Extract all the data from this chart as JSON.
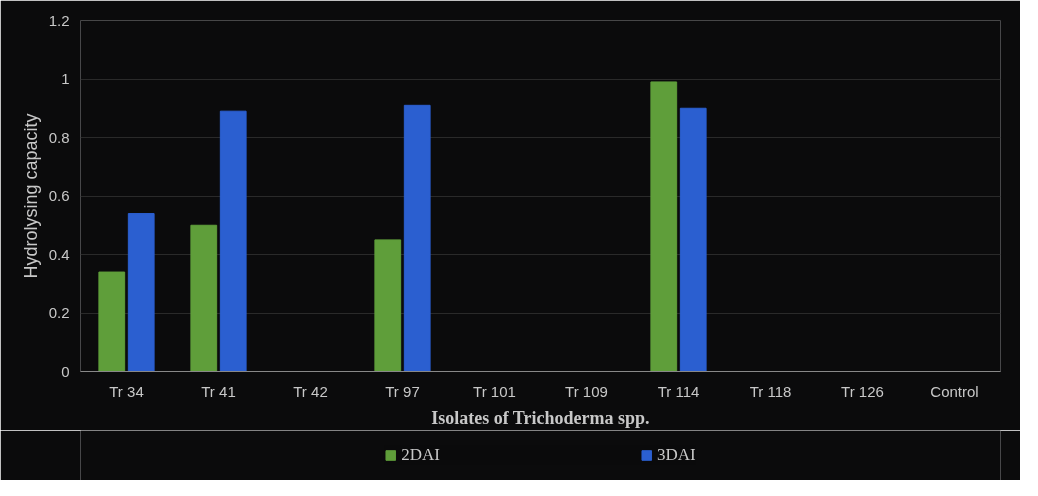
{
  "chart_data": {
    "type": "bar",
    "xlabel": "Isolates of Trichoderma spp.",
    "ylabel": "Hydrolysing capacity",
    "categories": [
      "Tr 34",
      "Tr 41",
      "Tr 42",
      "Tr 97",
      "Tr 101",
      "Tr 109",
      "Tr 114",
      "Tr 118",
      "Tr 126",
      "Control"
    ],
    "series": [
      {
        "name": "2DAI",
        "color": "#5f9e3a",
        "values": [
          0.34,
          0.5,
          0,
          0.45,
          0,
          0,
          0.99,
          0,
          0,
          0
        ]
      },
      {
        "name": "3DAI",
        "color": "#2b5fd0",
        "values": [
          0.54,
          0.89,
          0,
          0.91,
          0,
          0,
          0.9,
          0,
          0,
          0
        ]
      }
    ],
    "ylim": [
      0,
      1.2
    ],
    "yticks": [
      0,
      0.2,
      0.4,
      0.6,
      0.8,
      1,
      1.2
    ],
    "grid": "y",
    "legend": "bottom"
  }
}
